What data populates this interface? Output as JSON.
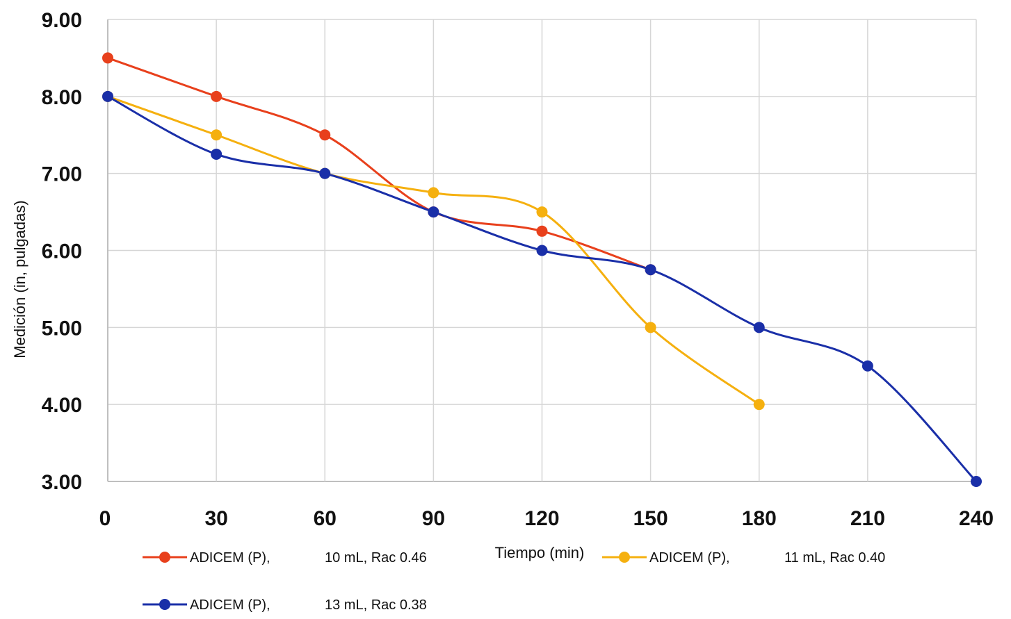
{
  "chart_data": {
    "type": "line",
    "title": "",
    "xlabel": "Tiempo (min)",
    "ylabel": "Medición (in, pulgadas)",
    "xlim": [
      0,
      240
    ],
    "ylim": [
      3,
      9
    ],
    "grid": true,
    "legend_position": "bottom",
    "x_ticks": [
      "0",
      "30",
      "60",
      "90",
      "120",
      "150",
      "180",
      "210",
      "240"
    ],
    "y_ticks": [
      "3.00",
      "4.00",
      "5.00",
      "6.00",
      "7.00",
      "8.00",
      "9.00"
    ],
    "series": [
      {
        "name": "ADICEM (P),",
        "detail": "10 mL, Rac 0.46",
        "color": "#e8401c",
        "x": [
          0,
          30,
          60,
          90,
          120,
          150
        ],
        "y": [
          8.5,
          8.0,
          7.5,
          6.5,
          6.25,
          5.75
        ]
      },
      {
        "name": "ADICEM (P),",
        "detail": "11 mL, Rac 0.40",
        "color": "#f5b00f",
        "x": [
          0,
          30,
          60,
          90,
          120,
          150,
          180
        ],
        "y": [
          8.0,
          7.5,
          7.0,
          6.75,
          6.5,
          5.0,
          4.0
        ]
      },
      {
        "name": "ADICEM (P),",
        "detail": "13 mL, Rac 0.38",
        "color": "#1a2fa8",
        "x": [
          0,
          30,
          60,
          90,
          120,
          150,
          180,
          210,
          240
        ],
        "y": [
          8.0,
          7.25,
          7.0,
          6.5,
          6.0,
          5.75,
          5.0,
          4.5,
          3.0
        ]
      }
    ]
  }
}
